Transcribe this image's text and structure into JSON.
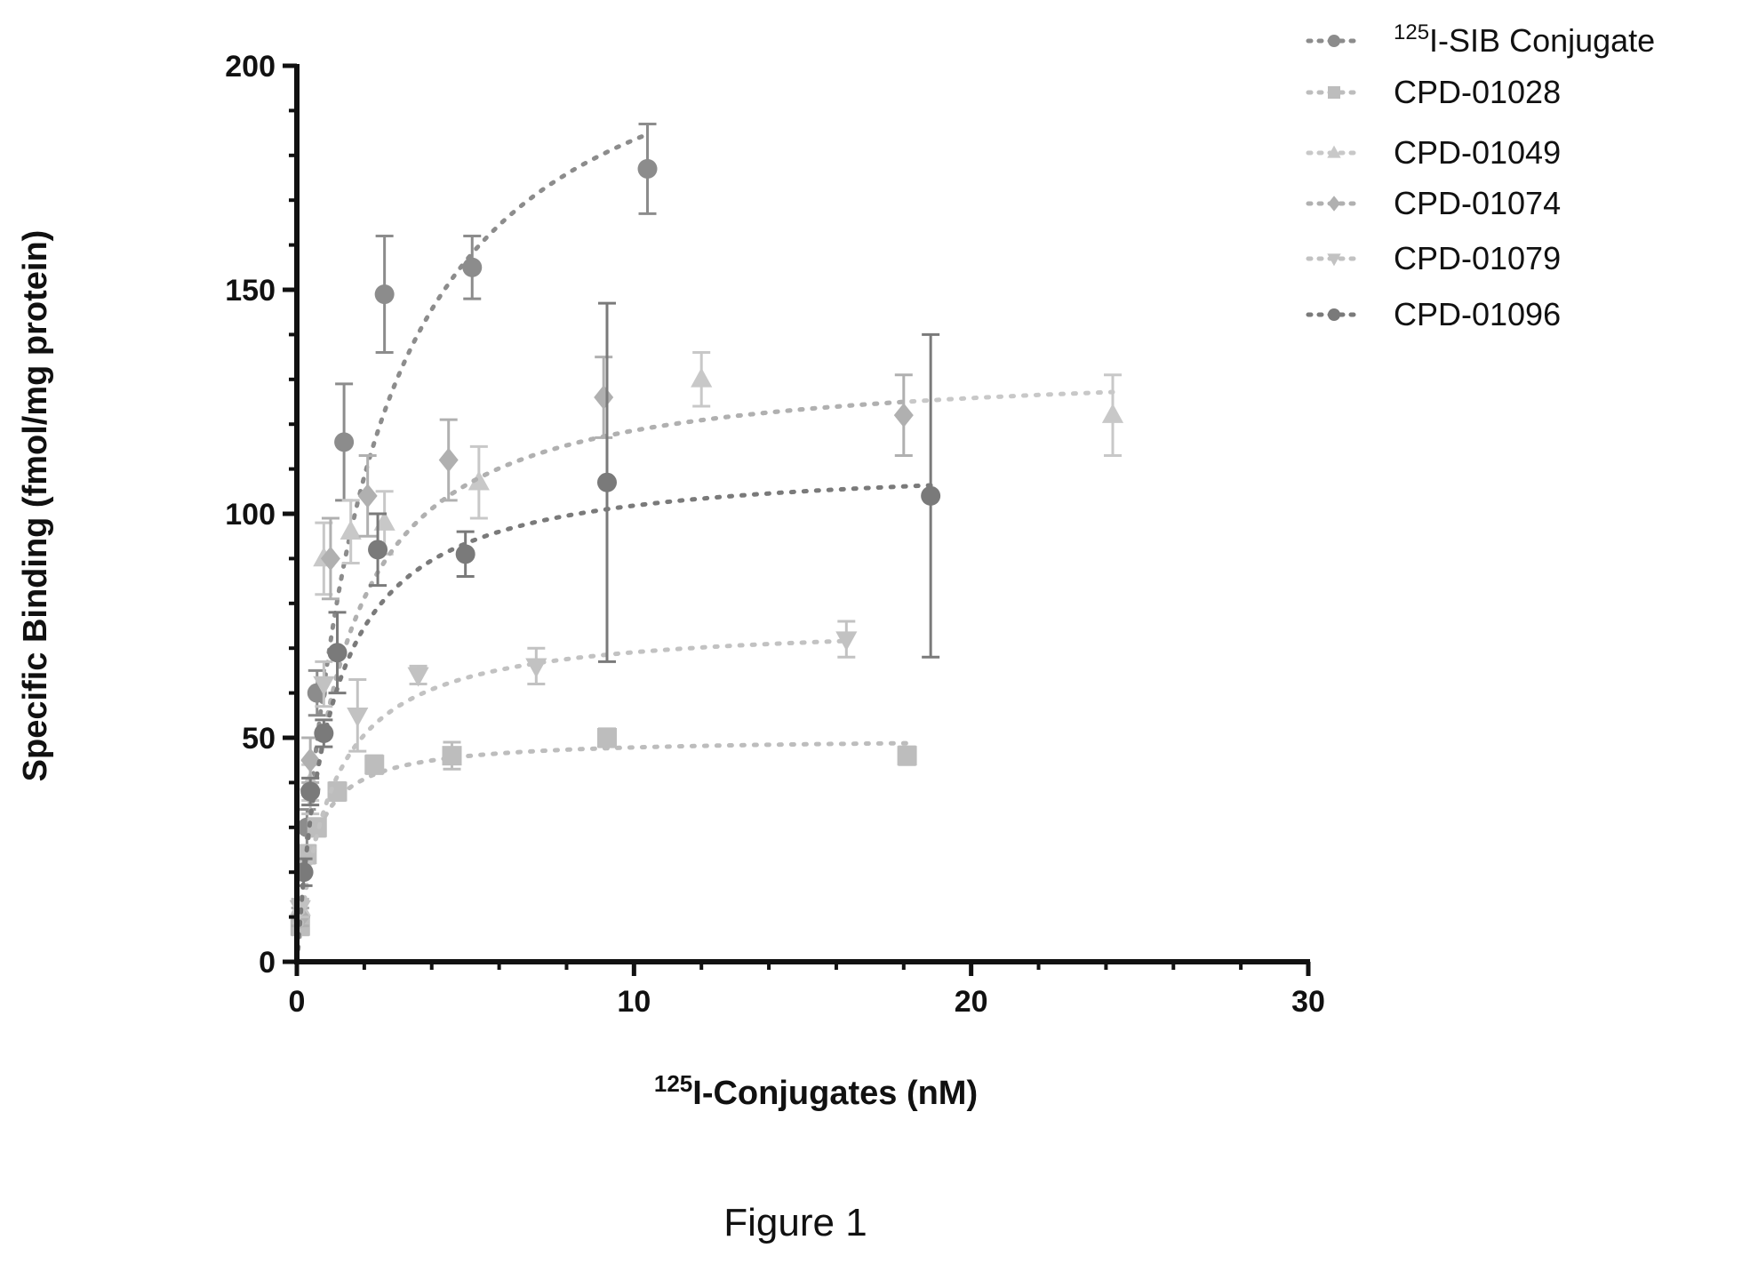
{
  "chart_data": {
    "type": "scatter",
    "title": "",
    "xlabel_sup": "125",
    "xlabel_main": "I-Conjugates (nM)",
    "ylabel": "Specific Binding  (fmol/mg protein)",
    "xlim": [
      0,
      30
    ],
    "ylim": [
      0,
      200
    ],
    "xticks": [
      "0",
      "10",
      "20",
      "30"
    ],
    "yticks": [
      "0",
      "50",
      "100",
      "150",
      "200"
    ],
    "grid": false,
    "legend_position": "top-right",
    "series": [
      {
        "name_sup": "125",
        "name": "I-SIB Conjugate",
        "color": "#8c8c8c",
        "marker": "circle",
        "points": [
          {
            "x": 0.1,
            "y": 10,
            "err": 2
          },
          {
            "x": 0.3,
            "y": 30,
            "err": 4
          },
          {
            "x": 0.6,
            "y": 60,
            "err": 5
          },
          {
            "x": 1.4,
            "y": 116,
            "err": 13
          },
          {
            "x": 2.6,
            "y": 149,
            "err": 13
          },
          {
            "x": 5.2,
            "y": 155,
            "err": 7
          },
          {
            "x": 10.4,
            "y": 177,
            "err": 10
          }
        ],
        "fit": {
          "bmax": 222,
          "kd": 2.1
        }
      },
      {
        "name": "CPD-01028",
        "color": "#bdbdbd",
        "marker": "square",
        "points": [
          {
            "x": 0.1,
            "y": 8,
            "err": 2
          },
          {
            "x": 0.3,
            "y": 24,
            "err": 2
          },
          {
            "x": 0.6,
            "y": 30,
            "err": 2
          },
          {
            "x": 1.2,
            "y": 38,
            "err": 2
          },
          {
            "x": 2.3,
            "y": 44,
            "err": 2
          },
          {
            "x": 4.6,
            "y": 46,
            "err": 3
          },
          {
            "x": 9.2,
            "y": 50,
            "err": 2
          },
          {
            "x": 18.1,
            "y": 46,
            "err": 2
          }
        ],
        "fit": {
          "bmax": 50,
          "kd": 0.45
        }
      },
      {
        "name": "CPD-01049",
        "color": "#c8c8c8",
        "marker": "triangle-up",
        "points": [
          {
            "x": 0.1,
            "y": 12,
            "err": 2
          },
          {
            "x": 0.4,
            "y": 40,
            "err": 4
          },
          {
            "x": 0.8,
            "y": 90,
            "err": 8
          },
          {
            "x": 1.6,
            "y": 96,
            "err": 7
          },
          {
            "x": 2.6,
            "y": 98,
            "err": 7
          },
          {
            "x": 5.4,
            "y": 107,
            "err": 8
          },
          {
            "x": 12.0,
            "y": 130,
            "err": 6
          },
          {
            "x": 24.2,
            "y": 122,
            "err": 9
          }
        ],
        "fit": {
          "bmax": 134,
          "kd": 1.3
        }
      },
      {
        "name": "CPD-01074",
        "color": "#b0b0b0",
        "marker": "diamond",
        "points": [
          {
            "x": 0.1,
            "y": 10,
            "err": 2
          },
          {
            "x": 0.4,
            "y": 45,
            "err": 5
          },
          {
            "x": 1.0,
            "y": 90,
            "err": 9
          },
          {
            "x": 2.1,
            "y": 104,
            "err": 9
          },
          {
            "x": 4.5,
            "y": 112,
            "err": 9
          },
          {
            "x": 9.1,
            "y": 126,
            "err": 9
          },
          {
            "x": 18.0,
            "y": 122,
            "err": 9
          }
        ],
        "fit": {
          "bmax": 134,
          "kd": 1.3
        }
      },
      {
        "name": "CPD-01079",
        "color": "#c2c2c2",
        "marker": "triangle-down",
        "points": [
          {
            "x": 0.1,
            "y": 12,
            "err": 2
          },
          {
            "x": 0.4,
            "y": 37,
            "err": 4
          },
          {
            "x": 0.8,
            "y": 62,
            "err": 5
          },
          {
            "x": 1.8,
            "y": 55,
            "err": 8
          },
          {
            "x": 3.6,
            "y": 64,
            "err": 2
          },
          {
            "x": 7.1,
            "y": 66,
            "err": 4
          },
          {
            "x": 16.3,
            "y": 72,
            "err": 4
          }
        ],
        "fit": {
          "bmax": 76,
          "kd": 1.0
        }
      },
      {
        "name": "CPD-01096",
        "color": "#7a7a7a",
        "marker": "circle",
        "points": [
          {
            "x": 0.2,
            "y": 20,
            "err": 3
          },
          {
            "x": 0.4,
            "y": 38,
            "err": 3
          },
          {
            "x": 0.8,
            "y": 51,
            "err": 3
          },
          {
            "x": 1.2,
            "y": 69,
            "err": 9
          },
          {
            "x": 2.4,
            "y": 92,
            "err": 8
          },
          {
            "x": 5.0,
            "y": 91,
            "err": 5
          },
          {
            "x": 9.2,
            "y": 107,
            "err": 40
          },
          {
            "x": 18.8,
            "y": 104,
            "err": 36
          }
        ],
        "fit": {
          "bmax": 112,
          "kd": 1.0
        }
      }
    ]
  },
  "caption": "Figure 1"
}
